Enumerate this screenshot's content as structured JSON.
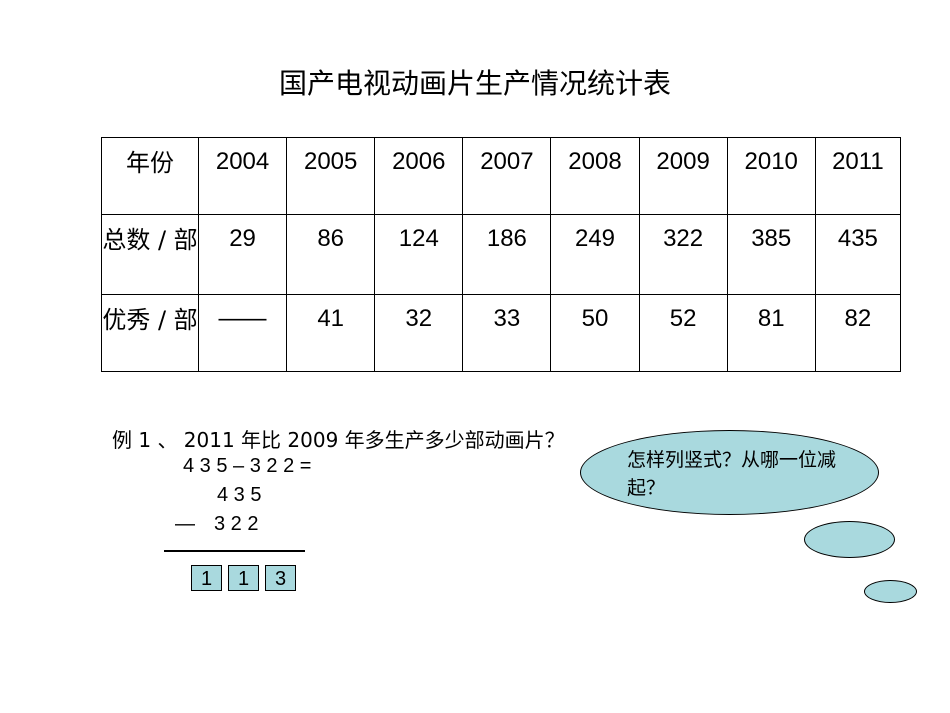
{
  "title": "国产电视动画片生产情况统计表",
  "table": {
    "header_label": "年份",
    "years": [
      "2004",
      "2005",
      "2006",
      "2007",
      "2008",
      "2009",
      "2010",
      "2011"
    ],
    "rows": [
      {
        "label": "总数 / 部",
        "values": [
          "29",
          "86",
          "124",
          "186",
          "249",
          "322",
          "385",
          "435"
        ]
      },
      {
        "label": "优秀 / 部",
        "values": [
          "——",
          "41",
          "32",
          "33",
          "50",
          "52",
          "81",
          "82"
        ]
      }
    ]
  },
  "problem": {
    "question": "例 1 、 2011 年比 2009 年多生产多少部动画片？",
    "equation": "4 3 5 – 3 2 2 =",
    "minuend": "4  3  5",
    "minus_sign": "—",
    "subtrahend": "3  2  2",
    "answer_digits": [
      "1",
      "1",
      "3"
    ]
  },
  "thought_bubble": {
    "text": "怎样列竖式？从哪一位减起？"
  }
}
